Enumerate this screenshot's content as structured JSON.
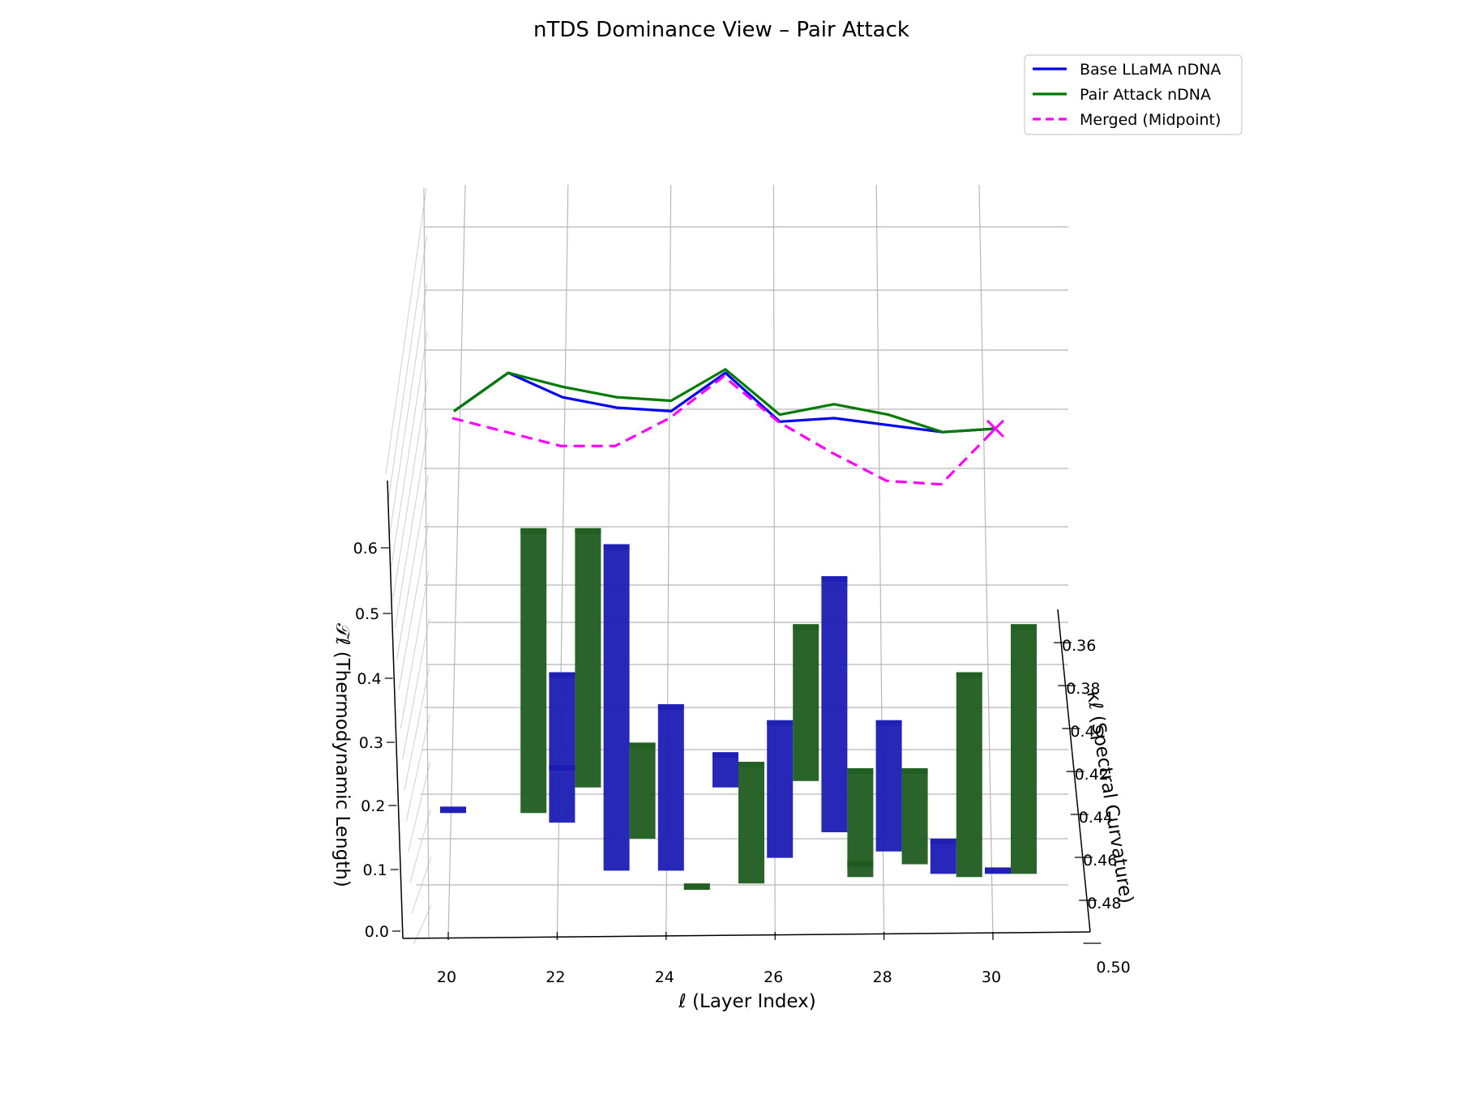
{
  "chart_data": {
    "type": "bar",
    "title": "nTDS Dominance View – Pair Attack",
    "xlabel": "ℓ (Layer Index)",
    "ylabel": "κℓ (Spectral Curvature)",
    "zlabel": "𝒯ℓ (Thermodynamic Length)",
    "x_ticks": [
      "20",
      "22",
      "24",
      "26",
      "28",
      "30"
    ],
    "y_ticks": [
      "0.36",
      "0.38",
      "0.40",
      "0.42",
      "0.44",
      "0.46",
      "0.48",
      "0.50"
    ],
    "z_ticks": [
      "0.0",
      "0.1",
      "0.2",
      "0.3",
      "0.4",
      "0.5",
      "0.6"
    ],
    "legend_position": "top-right",
    "colors": {
      "base": "#0000ee",
      "pair": "#007a00",
      "merged": "#ff00ff",
      "bar_base": "#1c1cb4",
      "bar_pair": "#1f5c1f"
    },
    "series": [
      {
        "name": "Base LLaMA nDNA",
        "style": "solid",
        "color": "#0000ee",
        "x": [
          20,
          21,
          22,
          23,
          24,
          25,
          26,
          27,
          28,
          29,
          30
        ],
        "kappa": [
          0.365,
          0.372,
          0.374,
          0.38,
          0.382,
          0.384,
          0.39,
          0.388,
          0.392,
          0.394,
          0.392
        ],
        "thermo": [
          0.82,
          0.93,
          0.86,
          0.83,
          0.82,
          0.93,
          0.79,
          0.8,
          0.78,
          0.76,
          0.77
        ]
      },
      {
        "name": "Pair Attack nDNA",
        "style": "solid",
        "color": "#007a00",
        "x": [
          20,
          21,
          22,
          23,
          24,
          25,
          26,
          27,
          28,
          29,
          30
        ],
        "kappa": [
          0.365,
          0.372,
          0.374,
          0.379,
          0.381,
          0.384,
          0.388,
          0.387,
          0.391,
          0.394,
          0.392
        ],
        "thermo": [
          0.82,
          0.93,
          0.89,
          0.86,
          0.85,
          0.94,
          0.81,
          0.84,
          0.81,
          0.76,
          0.77
        ]
      },
      {
        "name": "Merged (Midpoint)",
        "style": "dashed",
        "color": "#ff00ff",
        "x": [
          20,
          21,
          22,
          23,
          24,
          25,
          26,
          27,
          28,
          29,
          30
        ],
        "kappa": [
          0.362,
          0.372,
          0.39,
          0.388,
          0.37,
          0.352,
          0.378,
          0.392,
          0.41,
          0.408,
          0.376
        ],
        "thermo": [
          0.8,
          0.76,
          0.72,
          0.72,
          0.8,
          0.92,
          0.79,
          0.7,
          0.62,
          0.61,
          0.77
        ]
      }
    ],
    "bars": {
      "base": [
        {
          "x": 20,
          "kappa_bottom": 0.414,
          "kappa_top": 0.412,
          "label": ""
        },
        {
          "x": 22,
          "kappa_bottom": 0.399,
          "kappa_top": 0.4,
          "label": ""
        },
        {
          "x": 22,
          "kappa_bottom": 0.417,
          "kappa_top": 0.37,
          "label": ""
        },
        {
          "x": 23,
          "kappa_bottom": 0.432,
          "kappa_top": 0.33,
          "label": ""
        },
        {
          "x": 24,
          "kappa_bottom": 0.432,
          "kappa_top": 0.38,
          "label": ""
        },
        {
          "x": 25,
          "kappa_bottom": 0.406,
          "kappa_top": 0.395,
          "label": ""
        },
        {
          "x": 26,
          "kappa_bottom": 0.428,
          "kappa_top": 0.385,
          "label": ""
        },
        {
          "x": 27,
          "kappa_bottom": 0.42,
          "kappa_top": 0.34,
          "label": ""
        },
        {
          "x": 28,
          "kappa_bottom": 0.426,
          "kappa_top": 0.385,
          "label": ""
        },
        {
          "x": 29,
          "kappa_bottom": 0.433,
          "kappa_top": 0.422,
          "label": ""
        },
        {
          "x": 30,
          "kappa_bottom": 0.433,
          "kappa_top": 0.431,
          "label": ""
        }
      ],
      "pair": [
        {
          "x": 21,
          "kappa_bottom": 0.414,
          "kappa_top": 0.325,
          "label": ""
        },
        {
          "x": 22,
          "kappa_bottom": 0.406,
          "kappa_top": 0.325,
          "label": ""
        },
        {
          "x": 23,
          "kappa_bottom": 0.422,
          "kappa_top": 0.392,
          "label": ""
        },
        {
          "x": 24,
          "kappa_bottom": 0.438,
          "kappa_top": 0.436,
          "label": ""
        },
        {
          "x": 25,
          "kappa_bottom": 0.436,
          "kappa_top": 0.398,
          "label": ""
        },
        {
          "x": 26,
          "kappa_bottom": 0.404,
          "kappa_top": 0.355,
          "label": ""
        },
        {
          "x": 27,
          "kappa_bottom": 0.434,
          "kappa_top": 0.4,
          "label": ""
        },
        {
          "x": 27,
          "kappa_bottom": 0.43,
          "kappa_top": 0.429,
          "label": ""
        },
        {
          "x": 28,
          "kappa_bottom": 0.43,
          "kappa_top": 0.4,
          "label": ""
        },
        {
          "x": 29,
          "kappa_bottom": 0.434,
          "kappa_top": 0.37,
          "label": ""
        },
        {
          "x": 30,
          "kappa_bottom": 0.433,
          "kappa_top": 0.355,
          "label": ""
        }
      ]
    }
  }
}
